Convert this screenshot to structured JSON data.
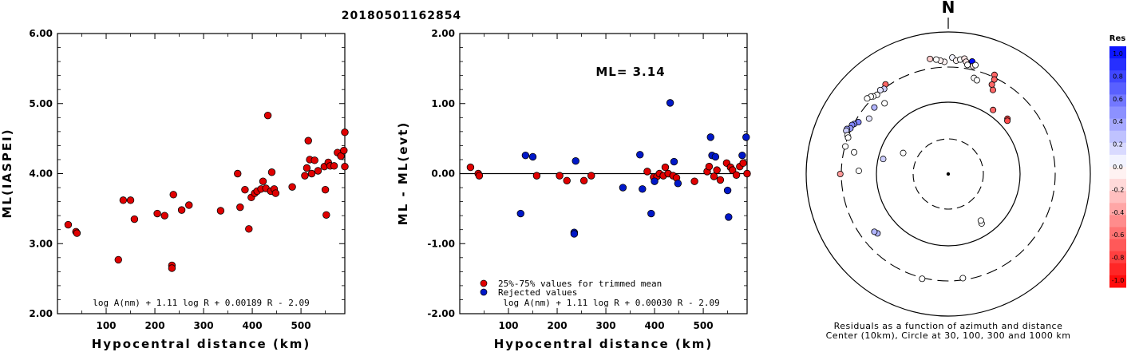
{
  "title": "20180501162854",
  "chart_data": [
    {
      "type": "scatter",
      "xlabel": "Hypocentral distance (km)",
      "ylabel": "ML(IASPEI)",
      "xlim": [
        0,
        590
      ],
      "ylim": [
        2.0,
        6.0
      ],
      "x_ticks": [
        "100",
        "200",
        "300",
        "400",
        "500"
      ],
      "y_ticks": [
        "2.00",
        "3.00",
        "4.00",
        "5.00",
        "6.00"
      ],
      "formula": "log A(nm) + 1.11 log R + 0.00189 R - 2.09",
      "point_color": "#e00000",
      "points": [
        [
          22,
          3.27
        ],
        [
          38,
          3.17
        ],
        [
          40,
          3.15
        ],
        [
          125,
          2.77
        ],
        [
          135,
          3.62
        ],
        [
          150,
          3.62
        ],
        [
          158,
          3.35
        ],
        [
          205,
          3.43
        ],
        [
          220,
          3.4
        ],
        [
          235,
          2.69
        ],
        [
          235,
          2.65
        ],
        [
          238,
          3.7
        ],
        [
          255,
          3.48
        ],
        [
          270,
          3.55
        ],
        [
          335,
          3.47
        ],
        [
          370,
          4.0
        ],
        [
          375,
          3.52
        ],
        [
          385,
          3.77
        ],
        [
          393,
          3.21
        ],
        [
          398,
          3.66
        ],
        [
          405,
          3.72
        ],
        [
          410,
          3.75
        ],
        [
          418,
          3.78
        ],
        [
          422,
          3.89
        ],
        [
          428,
          3.79
        ],
        [
          432,
          4.83
        ],
        [
          438,
          3.75
        ],
        [
          440,
          4.02
        ],
        [
          445,
          3.78
        ],
        [
          448,
          3.72
        ],
        [
          482,
          3.81
        ],
        [
          508,
          3.97
        ],
        [
          512,
          4.08
        ],
        [
          515,
          4.47
        ],
        [
          518,
          4.2
        ],
        [
          522,
          4.0
        ],
        [
          528,
          4.19
        ],
        [
          535,
          4.04
        ],
        [
          548,
          4.1
        ],
        [
          550,
          3.77
        ],
        [
          552,
          3.41
        ],
        [
          556,
          4.16
        ],
        [
          560,
          4.11
        ],
        [
          568,
          4.11
        ],
        [
          575,
          4.3
        ],
        [
          582,
          4.25
        ],
        [
          588,
          4.33
        ],
        [
          590,
          4.59
        ],
        [
          590,
          4.1
        ]
      ]
    },
    {
      "type": "scatter",
      "xlabel": "Hypocentral distance (km)",
      "ylabel": "ML - ML(evt)",
      "xlim": [
        0,
        590
      ],
      "ylim": [
        -2.0,
        2.0
      ],
      "x_ticks": [
        "100",
        "200",
        "300",
        "400",
        "500"
      ],
      "y_ticks": [
        "-2.00",
        "-1.00",
        "0.00",
        "1.00",
        "2.00"
      ],
      "ml_label": "ML= 3.14",
      "formula": "log A(nm) + 1.11 log R + 0.00030 R - 2.09",
      "legend": [
        {
          "label": "25%-75% values for trimmed mean",
          "color": "#e00000"
        },
        {
          "label": "Rejected values",
          "color": "#0018c8"
        }
      ],
      "series": [
        {
          "name": "25%-75% values for trimmed mean",
          "color": "#e00000",
          "points": [
            [
              22,
              0.09
            ],
            [
              38,
              0.0
            ],
            [
              40,
              -0.03
            ],
            [
              158,
              -0.03
            ],
            [
              205,
              -0.03
            ],
            [
              220,
              -0.1
            ],
            [
              255,
              -0.1
            ],
            [
              270,
              -0.03
            ],
            [
              385,
              0.03
            ],
            [
              398,
              -0.05
            ],
            [
              405,
              -0.04
            ],
            [
              410,
              0.0
            ],
            [
              418,
              -0.03
            ],
            [
              422,
              0.09
            ],
            [
              428,
              0.0
            ],
            [
              438,
              -0.03
            ],
            [
              445,
              -0.06
            ],
            [
              482,
              -0.11
            ],
            [
              508,
              0.03
            ],
            [
              512,
              0.1
            ],
            [
              522,
              -0.04
            ],
            [
              528,
              0.05
            ],
            [
              535,
              -0.09
            ],
            [
              548,
              0.15
            ],
            [
              556,
              0.09
            ],
            [
              560,
              0.05
            ],
            [
              568,
              -0.02
            ],
            [
              575,
              0.1
            ],
            [
              582,
              0.15
            ],
            [
              590,
              0.0
            ]
          ]
        },
        {
          "name": "Rejected values",
          "color": "#0018c8",
          "points": [
            [
              125,
              -0.57
            ],
            [
              135,
              0.26
            ],
            [
              150,
              0.24
            ],
            [
              235,
              -0.84
            ],
            [
              235,
              -0.86
            ],
            [
              238,
              0.18
            ],
            [
              335,
              -0.2
            ],
            [
              370,
              0.27
            ],
            [
              375,
              -0.22
            ],
            [
              393,
              -0.57
            ],
            [
              400,
              -0.11
            ],
            [
              432,
              1.01
            ],
            [
              440,
              0.17
            ],
            [
              448,
              -0.14
            ],
            [
              515,
              0.52
            ],
            [
              518,
              0.26
            ],
            [
              525,
              0.24
            ],
            [
              550,
              -0.24
            ],
            [
              552,
              -0.62
            ],
            [
              580,
              0.26
            ],
            [
              588,
              0.52
            ]
          ]
        }
      ]
    },
    {
      "type": "scatter",
      "subtype": "polar azimuth-distance",
      "north_label": "N",
      "caption_line1": "Residuals as a function of azimuth and distance",
      "caption_line2": "Center (10km), Circle at 30, 100, 300 and 1000 km",
      "colorbar_title": "Res",
      "colorbar_ticks": [
        "1.0",
        "0.8",
        "0.6",
        "0.4",
        "0.2",
        "0.0",
        "-0.2",
        "-0.4",
        "-0.6",
        "-0.8",
        "-1.0"
      ],
      "rings_km": [
        30,
        100,
        300,
        1000
      ],
      "points": [
        {
          "az": 2,
          "r": 0.82,
          "res": 0.05
        },
        {
          "az": 4,
          "r": 0.8,
          "res": -0.05
        },
        {
          "az": 6,
          "r": 0.81,
          "res": 0.0
        },
        {
          "az": 8,
          "r": 0.82,
          "res": -0.1
        },
        {
          "az": 9,
          "r": 0.8,
          "res": -0.1
        },
        {
          "az": 10,
          "r": 0.78,
          "res": 0.0
        },
        {
          "az": 12,
          "r": 0.81,
          "res": 1.0
        },
        {
          "az": 13,
          "r": 0.78,
          "res": -0.1
        },
        {
          "az": 14,
          "r": 0.79,
          "res": 0.0
        },
        {
          "az": 15,
          "r": 0.7,
          "res": 0.0
        },
        {
          "az": 17,
          "r": 0.69,
          "res": 0.0
        },
        {
          "az": 358,
          "r": 0.79,
          "res": -0.05
        },
        {
          "az": 356,
          "r": 0.8,
          "res": -0.05
        },
        {
          "az": 354,
          "r": 0.81,
          "res": 0.0
        },
        {
          "az": 351,
          "r": 0.82,
          "res": -0.2
        },
        {
          "az": 25,
          "r": 0.77,
          "res": -0.6
        },
        {
          "az": 26,
          "r": 0.74,
          "res": -0.6
        },
        {
          "az": 26,
          "r": 0.7,
          "res": -0.6
        },
        {
          "az": 28,
          "r": 0.67,
          "res": -0.6
        },
        {
          "az": 35,
          "r": 0.55,
          "res": -0.6
        },
        {
          "az": 47,
          "r": 0.57,
          "res": -0.7
        },
        {
          "az": 48,
          "r": 0.56,
          "res": -0.7
        },
        {
          "az": 325,
          "r": 0.77,
          "res": -0.6
        },
        {
          "az": 323,
          "r": 0.75,
          "res": 0.2
        },
        {
          "az": 321,
          "r": 0.76,
          "res": 0.1
        },
        {
          "az": 318,
          "r": 0.75,
          "res": 0.0
        },
        {
          "az": 316,
          "r": 0.76,
          "res": 0.0
        },
        {
          "az": 315,
          "r": 0.77,
          "res": 0.0
        },
        {
          "az": 313,
          "r": 0.78,
          "res": 0.0
        },
        {
          "az": 318,
          "r": 0.67,
          "res": 0.0
        },
        {
          "az": 312,
          "r": 0.7,
          "res": 0.3
        },
        {
          "az": 305,
          "r": 0.68,
          "res": 0.1
        },
        {
          "az": 300,
          "r": 0.73,
          "res": 0.5
        },
        {
          "az": 298,
          "r": 0.75,
          "res": 0.5
        },
        {
          "az": 297,
          "r": 0.76,
          "res": 0.5
        },
        {
          "az": 295,
          "r": 0.76,
          "res": 0.4
        },
        {
          "az": 294,
          "r": 0.78,
          "res": 0.4
        },
        {
          "az": 293,
          "r": 0.78,
          "res": 0.2
        },
        {
          "az": 291,
          "r": 0.76,
          "res": 0.0
        },
        {
          "az": 290,
          "r": 0.75,
          "res": 0.0
        },
        {
          "az": 285,
          "r": 0.75,
          "res": 0.0
        },
        {
          "az": 283,
          "r": 0.68,
          "res": 0.0
        },
        {
          "az": 283,
          "r": 0.47,
          "res": 0.2
        },
        {
          "az": 270,
          "r": 0.76,
          "res": -0.4
        },
        {
          "az": 272,
          "r": 0.63,
          "res": 0.0
        },
        {
          "az": 295,
          "r": 0.35,
          "res": 0.0
        },
        {
          "az": 146,
          "r": 0.42,
          "res": 0.0
        },
        {
          "az": 145,
          "r": 0.4,
          "res": 0.0
        },
        {
          "az": 230,
          "r": 0.65,
          "res": 0.3
        },
        {
          "az": 232,
          "r": 0.66,
          "res": 0.3
        },
        {
          "az": 194,
          "r": 0.76,
          "res": 0.0
        },
        {
          "az": 172,
          "r": 0.74,
          "res": 0.0
        }
      ]
    }
  ]
}
